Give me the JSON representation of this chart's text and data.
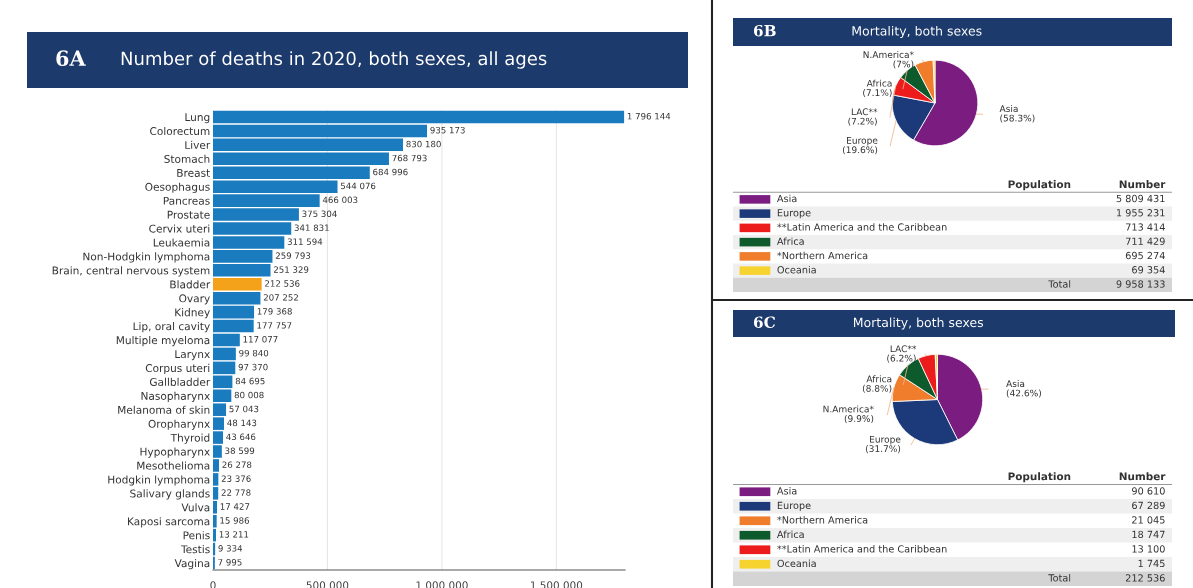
{
  "chart_data": [
    {
      "type": "bar",
      "orientation": "horizontal",
      "subtitle": "6A",
      "title": "Number of deaths in 2020, both sexes, all ages",
      "categories": [
        "Lung",
        "Colorectum",
        "Liver",
        "Stomach",
        "Breast",
        "Oesophagus",
        "Pancreas",
        "Prostate",
        "Cervix uteri",
        "Leukaemia",
        "Non-Hodgkin lymphoma",
        "Brain, central nervous system",
        "Bladder",
        "Ovary",
        "Kidney",
        "Lip, oral cavity",
        "Multiple myeloma",
        "Larynx",
        "Corpus uteri",
        "Gallbladder",
        "Nasopharynx",
        "Melanoma of skin",
        "Oropharynx",
        "Thyroid",
        "Hypopharynx",
        "Mesothelioma",
        "Hodgkin lymphoma",
        "Salivary glands",
        "Vulva",
        "Kaposi sarcoma",
        "Penis",
        "Testis",
        "Vagina"
      ],
      "values": [
        1796144,
        935173,
        830180,
        768793,
        684996,
        544076,
        466003,
        375304,
        341831,
        311594,
        259793,
        251329,
        212536,
        207252,
        179368,
        177757,
        117077,
        99840,
        97370,
        84695,
        80008,
        57043,
        48143,
        43646,
        38599,
        26278,
        23376,
        22778,
        17427,
        15986,
        13211,
        9334,
        7995
      ],
      "value_labels": [
        "1 796 144",
        "935 173",
        "830 180",
        "768 793",
        "684 996",
        "544 076",
        "466 003",
        "375 304",
        "341 831",
        "311 594",
        "259 793",
        "251 329",
        "212 536",
        "207 252",
        "179 368",
        "177 757",
        "117 077",
        "99 840",
        "97 370",
        "84 695",
        "80 008",
        "57 043",
        "48 143",
        "43 646",
        "38 599",
        "26 278",
        "23 376",
        "22 778",
        "17 427",
        "15 986",
        "13 211",
        "9 334",
        "7 995"
      ],
      "colors": [
        "#1b7bbf",
        "#1b7bbf",
        "#1b7bbf",
        "#1b7bbf",
        "#1b7bbf",
        "#1b7bbf",
        "#1b7bbf",
        "#1b7bbf",
        "#1b7bbf",
        "#1b7bbf",
        "#1b7bbf",
        "#1b7bbf",
        "#f5a21b",
        "#1b7bbf",
        "#1b7bbf",
        "#1b7bbf",
        "#1b7bbf",
        "#1b7bbf",
        "#1b7bbf",
        "#1b7bbf",
        "#1b7bbf",
        "#1b7bbf",
        "#1b7bbf",
        "#1b7bbf",
        "#1b7bbf",
        "#1b7bbf",
        "#1b7bbf",
        "#1b7bbf",
        "#1b7bbf",
        "#1b7bbf",
        "#1b7bbf",
        "#1b7bbf",
        "#1b7bbf"
      ],
      "xlim": [
        0,
        1800000
      ],
      "xticks": [
        0,
        {
          "value": 500000,
          "label": "500 000"
        },
        {
          "value": 1000000,
          "label": "1 000 000"
        },
        {
          "value": 1500000,
          "label": "1 500 000"
        }
      ],
      "grid": "x"
    },
    {
      "type": "pie",
      "subtitle": "6B",
      "title": "Mortality, both sexes",
      "xlabel": "Population",
      "ylabel": "Number",
      "categories": [
        "Asia",
        "Europe",
        "**Latin America and the Caribbean",
        "Africa",
        "*Northern America",
        "Oceania"
      ],
      "values": [
        5809431,
        1955231,
        713414,
        711429,
        695274,
        69354
      ],
      "value_labels": [
        "5 809 431",
        "1 955 231",
        "713 414",
        "711 429",
        "695 274",
        "69 354"
      ],
      "colors": [
        "#7b1c80",
        "#1c3a7a",
        "#ec1c1c",
        "#0d5a2c",
        "#ef7d2c",
        "#f6d32e"
      ],
      "annotations": [
        "Asia\n(58.3%)",
        "Europe\n(19.6%)",
        "LAC**\n(7.2%)",
        "Africa\n(7.1%)",
        "N.America*\n(7%)"
      ],
      "totals": [
        "Total",
        "9 958 133"
      ],
      "legend": "bottom"
    },
    {
      "type": "pie",
      "subtitle": "6C",
      "title": "Mortality, both sexes",
      "xlabel": "Population",
      "ylabel": "Number",
      "categories": [
        "Asia",
        "Europe",
        "*Northern America",
        "Africa",
        "**Latin America and the Caribbean",
        "Oceania"
      ],
      "values": [
        90610,
        67289,
        21045,
        18747,
        13100,
        1745
      ],
      "value_labels": [
        "90 610",
        "67 289",
        "21 045",
        "18 747",
        "13 100",
        "1 745"
      ],
      "colors": [
        "#7b1c80",
        "#1c3a7a",
        "#ef7d2c",
        "#0d5a2c",
        "#ec1c1c",
        "#f6d32e"
      ],
      "annotations": [
        "Asia\n(42.6%)",
        "Europe\n(31.7%)",
        "N.America*\n(9.9%)",
        "Africa\n(8.8%)",
        "LAC**\n(6.2%)"
      ],
      "totals": [
        "Total",
        "212 536"
      ],
      "legend": "bottom"
    }
  ]
}
